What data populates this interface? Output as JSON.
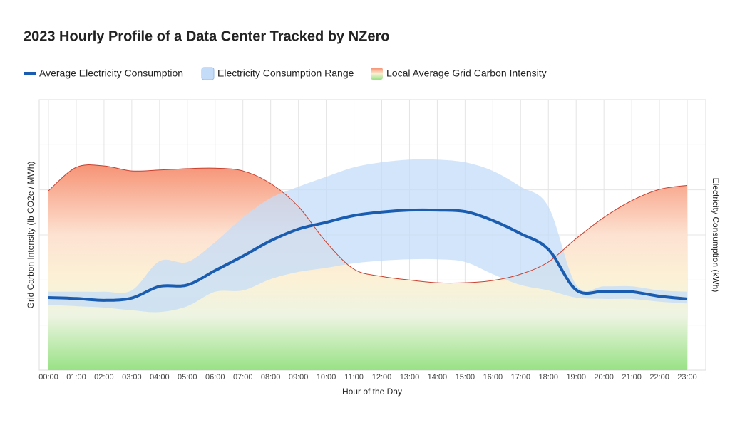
{
  "chart_data": {
    "type": "line",
    "title": "2023 Hourly Profile of a Data Center Tracked by NZero",
    "x_label": "Hour of the Day",
    "y_label": "Grid Carbon Intensity (lb CO2e / MWh)",
    "y2_label": "Electricity Consumption (kWh)",
    "categories": [
      "00:00",
      "01:00",
      "02:00",
      "03:00",
      "04:00",
      "05:00",
      "06:00",
      "07:00",
      "08:00",
      "09:00",
      "10:00",
      "11:00",
      "12:00",
      "13:00",
      "14:00",
      "15:00",
      "16:00",
      "17:00",
      "18:00",
      "19:00",
      "20:00",
      "21:00",
      "22:00",
      "23:00"
    ],
    "ylim": [
      0,
      6
    ],
    "y2lim": [
      0,
      6
    ],
    "ygrid": [
      1,
      2,
      3,
      4,
      5
    ],
    "grid": true,
    "series": [
      {
        "name": "Average Electricity Consumption",
        "color": "#1a5cb0",
        "axis": "y2",
        "values": [
          1.61,
          1.59,
          1.55,
          1.6,
          1.86,
          1.89,
          2.21,
          2.53,
          2.87,
          3.13,
          3.28,
          3.43,
          3.51,
          3.55,
          3.55,
          3.52,
          3.32,
          3.03,
          2.68,
          1.78,
          1.75,
          1.74,
          1.64,
          1.58
        ]
      },
      {
        "name": "Electricity Consumption Range",
        "color": "#c4dcf8",
        "axis": "y2",
        "high": [
          1.74,
          1.74,
          1.74,
          1.77,
          2.42,
          2.4,
          2.84,
          3.39,
          3.82,
          4.07,
          4.29,
          4.5,
          4.61,
          4.67,
          4.67,
          4.61,
          4.42,
          4.07,
          3.63,
          1.89,
          1.86,
          1.86,
          1.77,
          1.74
        ],
        "low": [
          1.45,
          1.42,
          1.39,
          1.33,
          1.29,
          1.42,
          1.74,
          1.77,
          2.02,
          2.18,
          2.27,
          2.37,
          2.43,
          2.46,
          2.46,
          2.4,
          2.13,
          1.89,
          1.77,
          1.61,
          1.58,
          1.58,
          1.52,
          1.48
        ]
      },
      {
        "name": "Local Average Grid Carbon Intensity",
        "color": "#c8402e",
        "values": [
          3.98,
          4.5,
          4.53,
          4.42,
          4.44,
          4.47,
          4.48,
          4.42,
          4.14,
          3.63,
          2.84,
          2.24,
          2.08,
          2.0,
          1.94,
          1.94,
          1.99,
          2.13,
          2.4,
          2.92,
          3.39,
          3.76,
          4.01,
          4.1
        ]
      }
    ]
  }
}
